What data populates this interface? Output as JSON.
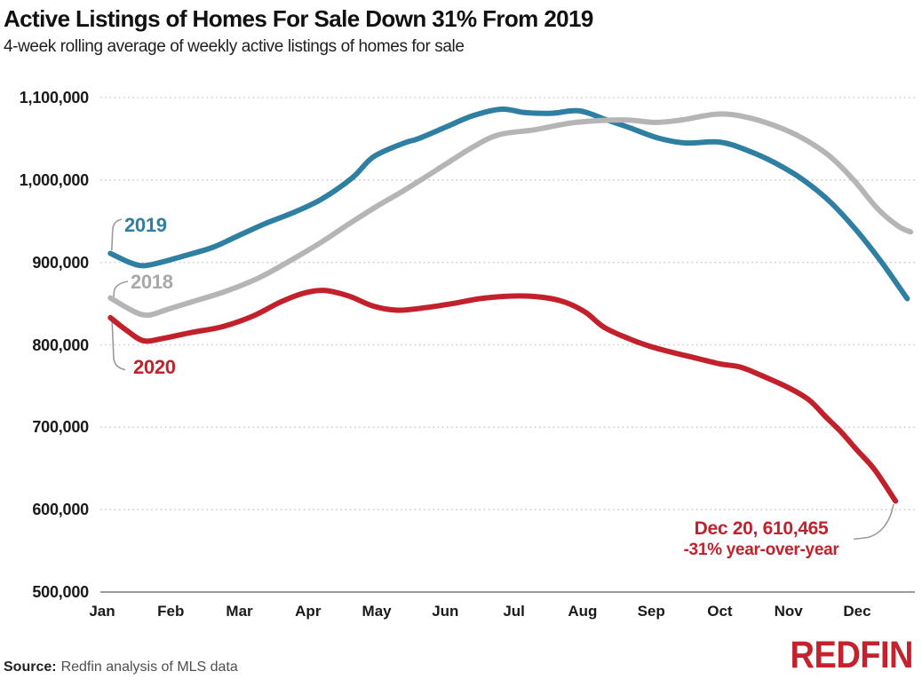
{
  "header": {
    "title": "Active Listings of Homes For Sale Down 31% From 2019",
    "subtitle": "4-week rolling average of weekly active listings of homes for sale"
  },
  "chart_data": {
    "type": "line",
    "title": "Active Listings of Homes For Sale Down 31% From 2019",
    "subtitle": "4-week rolling average of weekly active listings of homes for sale",
    "x_axis": {
      "labels": [
        "Jan",
        "Feb",
        "Mar",
        "Apr",
        "May",
        "Jun",
        "Jul",
        "Aug",
        "Sep",
        "Oct",
        "Nov",
        "Dec"
      ],
      "unit": "month"
    },
    "y_axis": {
      "range": [
        500000,
        1100000
      ],
      "tick_values": [
        500000,
        600000,
        700000,
        800000,
        900000,
        1000000,
        1100000
      ],
      "tick_labels": [
        "500,000",
        "600,000",
        "700,000",
        "800,000",
        "900,000",
        "1,000,000",
        "1,100,000"
      ],
      "gridlines": "dotted horizontal, solid baseline at 500,000"
    },
    "legend_position": "inline labels at line starts",
    "series": [
      {
        "name": "2019",
        "color": "#2e7fa1",
        "points": [
          [
            0.12,
            911000
          ],
          [
            0.4,
            900000
          ],
          [
            0.6,
            896000
          ],
          [
            0.85,
            900000
          ],
          [
            1.15,
            907000
          ],
          [
            1.6,
            918000
          ],
          [
            2.0,
            933000
          ],
          [
            2.4,
            948000
          ],
          [
            2.8,
            961000
          ],
          [
            3.2,
            977000
          ],
          [
            3.65,
            1003000
          ],
          [
            3.95,
            1028000
          ],
          [
            4.4,
            1045000
          ],
          [
            4.6,
            1050000
          ],
          [
            5.0,
            1064000
          ],
          [
            5.4,
            1078000
          ],
          [
            5.82,
            1086000
          ],
          [
            6.15,
            1082000
          ],
          [
            6.55,
            1081000
          ],
          [
            6.95,
            1084000
          ],
          [
            7.35,
            1073000
          ],
          [
            7.7,
            1063000
          ],
          [
            8.1,
            1051000
          ],
          [
            8.5,
            1045000
          ],
          [
            9.0,
            1046000
          ],
          [
            9.4,
            1036000
          ],
          [
            9.8,
            1021000
          ],
          [
            10.2,
            1001000
          ],
          [
            10.6,
            974000
          ],
          [
            11.0,
            938000
          ],
          [
            11.35,
            901000
          ],
          [
            11.73,
            856000
          ]
        ]
      },
      {
        "name": "2018",
        "color": "#b5b5b5",
        "label_color": "#a8a8a8",
        "points": [
          [
            0.12,
            857000
          ],
          [
            0.45,
            841000
          ],
          [
            0.67,
            836000
          ],
          [
            0.95,
            843000
          ],
          [
            1.3,
            852000
          ],
          [
            1.8,
            865000
          ],
          [
            2.3,
            882000
          ],
          [
            2.8,
            905000
          ],
          [
            3.2,
            925000
          ],
          [
            3.6,
            947000
          ],
          [
            4.0,
            968000
          ],
          [
            4.35,
            985000
          ],
          [
            4.7,
            1003000
          ],
          [
            5.0,
            1019000
          ],
          [
            5.4,
            1040000
          ],
          [
            5.78,
            1055000
          ],
          [
            6.3,
            1061000
          ],
          [
            6.9,
            1070000
          ],
          [
            7.6,
            1073000
          ],
          [
            8.05,
            1070000
          ],
          [
            8.45,
            1073000
          ],
          [
            8.95,
            1080000
          ],
          [
            9.35,
            1077000
          ],
          [
            9.8,
            1066000
          ],
          [
            10.2,
            1051000
          ],
          [
            10.6,
            1029000
          ],
          [
            10.95,
            1000000
          ],
          [
            11.3,
            965000
          ],
          [
            11.6,
            944000
          ],
          [
            11.78,
            937000
          ]
        ]
      },
      {
        "name": "2020",
        "color": "#c2212b",
        "points": [
          [
            0.12,
            833000
          ],
          [
            0.35,
            818000
          ],
          [
            0.6,
            805000
          ],
          [
            0.9,
            808000
          ],
          [
            1.3,
            815000
          ],
          [
            1.75,
            822000
          ],
          [
            2.2,
            835000
          ],
          [
            2.6,
            852000
          ],
          [
            2.95,
            863000
          ],
          [
            3.25,
            866000
          ],
          [
            3.6,
            859000
          ],
          [
            3.95,
            847000
          ],
          [
            4.3,
            842000
          ],
          [
            4.7,
            845000
          ],
          [
            5.1,
            850000
          ],
          [
            5.5,
            856000
          ],
          [
            5.9,
            859000
          ],
          [
            6.25,
            859000
          ],
          [
            6.55,
            856000
          ],
          [
            6.8,
            850000
          ],
          [
            7.05,
            839000
          ],
          [
            7.3,
            822000
          ],
          [
            7.6,
            810000
          ],
          [
            7.95,
            799000
          ],
          [
            8.3,
            791000
          ],
          [
            8.6,
            785000
          ],
          [
            9.0,
            777000
          ],
          [
            9.3,
            773000
          ],
          [
            9.6,
            763000
          ],
          [
            10.0,
            748000
          ],
          [
            10.3,
            733000
          ],
          [
            10.55,
            712000
          ],
          [
            10.77,
            694000
          ],
          [
            11.0,
            672000
          ],
          [
            11.25,
            649000
          ],
          [
            11.56,
            610465
          ]
        ]
      }
    ],
    "annotation": {
      "line1": "Dec 20, 610,465",
      "line2": "-31% year-over-year",
      "attached_to": "end of 2020 series",
      "value": 610465,
      "change": "-31% year-over-year"
    },
    "series_labels": {
      "s2019": "2019",
      "s2018": "2018",
      "s2020": "2020"
    }
  },
  "footer": {
    "source_label": "Source:",
    "source_text": "Redfin analysis of MLS data",
    "brand": "REDFIN",
    "brand_color": "#c4232e"
  },
  "colors": {
    "teal": "#2e7fa1",
    "gray_line": "#b5b5b5",
    "gray_label": "#a8a8a8",
    "red": "#c2212b",
    "grid": "#cdcdcd",
    "baseline": "#9b9b9b"
  }
}
